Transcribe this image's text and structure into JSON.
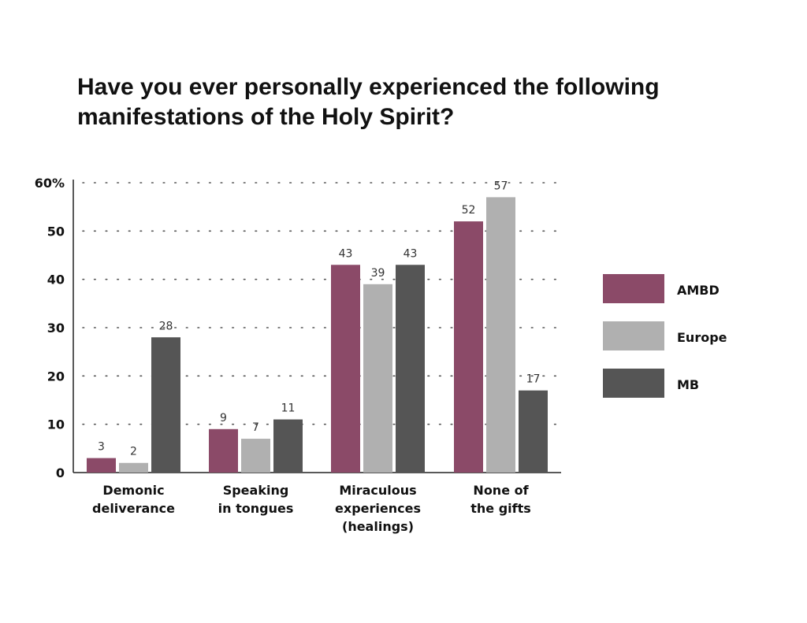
{
  "chart_data": {
    "type": "bar",
    "title": "Have you ever personally experienced the following manifestations of the Holy Spirit?",
    "categories": [
      [
        "Demonic",
        "deliverance"
      ],
      [
        "Speaking",
        "in tongues"
      ],
      [
        "Miraculous",
        "experiences",
        "(healings)"
      ],
      [
        "None of",
        "the gifts"
      ]
    ],
    "series": [
      {
        "name": "AMBD",
        "color": "#8b4a68",
        "values": [
          3,
          9,
          43,
          52
        ]
      },
      {
        "name": "Europe",
        "color": "#b0b0b0",
        "values": [
          2,
          7,
          39,
          57
        ]
      },
      {
        "name": "MB",
        "color": "#555555",
        "values": [
          28,
          11,
          43,
          17
        ]
      }
    ],
    "yticks": [
      {
        "value": 0,
        "label": "0"
      },
      {
        "value": 10,
        "label": "10"
      },
      {
        "value": 20,
        "label": "20"
      },
      {
        "value": 30,
        "label": "30"
      },
      {
        "value": 40,
        "label": "40"
      },
      {
        "value": 50,
        "label": "50"
      },
      {
        "value": 60,
        "label": "60%"
      }
    ],
    "ylim": [
      0,
      60
    ],
    "grid": "dotted",
    "legend_position": "right"
  }
}
